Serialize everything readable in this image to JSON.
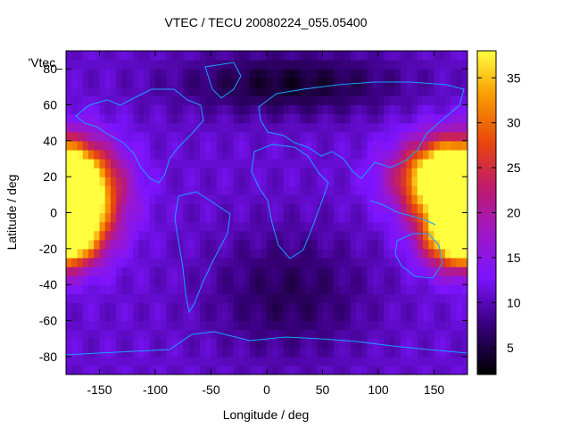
{
  "chart_data": {
    "type": "heatmap",
    "title": "VTEC / TECU 20080224_055.05400",
    "xlabel": "Longitude / deg",
    "ylabel": "Latitude / deg",
    "key_label": "'Vtec_",
    "xlim": [
      -180,
      180
    ],
    "ylim": [
      -90,
      90
    ],
    "x_ticks": [
      -150,
      -100,
      -50,
      0,
      50,
      100,
      150
    ],
    "y_ticks": [
      -80,
      -60,
      -40,
      -20,
      0,
      20,
      40,
      60,
      80
    ],
    "colorbar": {
      "range": [
        2,
        38
      ],
      "ticks": [
        5,
        10,
        15,
        20,
        25,
        30,
        35
      ],
      "palette": [
        "#000000",
        "#3a0080",
        "#7d14ff",
        "#c01a6a",
        "#e8480b",
        "#f99a00",
        "#ffff40"
      ]
    },
    "grid": false,
    "background_level": 11,
    "features": [
      {
        "name": "equatorial anomaly west",
        "lon": -175,
        "lat": 10,
        "peak": 34,
        "spread_lon": 28,
        "spread_lat": 18
      },
      {
        "name": "equatorial anomaly east north",
        "lon": 160,
        "lat": 20,
        "peak": 29,
        "spread_lon": 30,
        "spread_lat": 14
      },
      {
        "name": "equatorial anomaly east south",
        "lon": 175,
        "lat": -13,
        "peak": 34,
        "spread_lon": 22,
        "spread_lat": 12
      },
      {
        "name": "polar low north",
        "lon": 20,
        "lat": 72,
        "peak": -7,
        "spread_lon": 70,
        "spread_lat": 12
      },
      {
        "name": "midlatitude low south",
        "lon": 20,
        "lat": -45,
        "peak": -5,
        "spread_lon": 50,
        "spread_lat": 25
      }
    ]
  }
}
